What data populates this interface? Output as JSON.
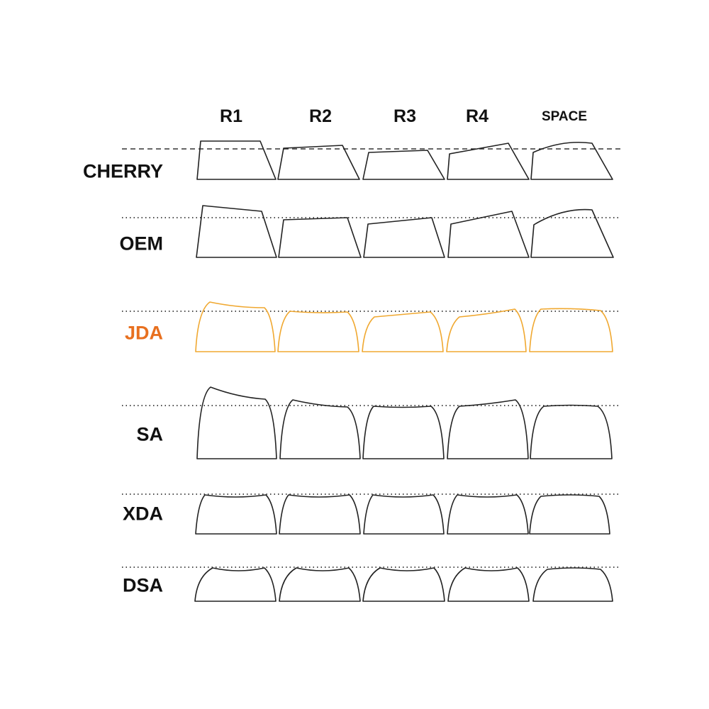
{
  "columns": [
    "R1",
    "R2",
    "R3",
    "R4",
    "SPACE"
  ],
  "profiles": [
    {
      "label": "CHERRY",
      "color": "#111111",
      "guide": "dashed"
    },
    {
      "label": "OEM",
      "color": "#111111",
      "guide": "dotted"
    },
    {
      "label": "JDA",
      "color": "#e8701f",
      "key_color": "#f0a830",
      "guide": "dotted"
    },
    {
      "label": "SA",
      "color": "#111111",
      "guide": "dotted"
    },
    {
      "label": "XDA",
      "color": "#111111",
      "guide": "dotted"
    },
    {
      "label": "DSA",
      "color": "#111111",
      "guide": "dotted"
    }
  ]
}
